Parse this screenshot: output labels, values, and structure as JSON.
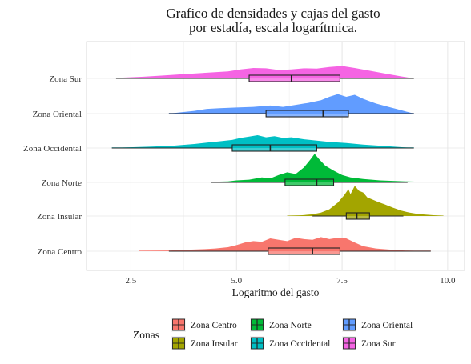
{
  "chart_data": {
    "type": "ridgeline-boxplot",
    "title_lines": [
      "Grafico de densidades y cajas del gasto",
      "por estadía, escala logarítmica."
    ],
    "xlabel": "Logaritmo del gasto",
    "ylabel": "",
    "xlim": [
      1.45,
      10.4
    ],
    "x_ticks": [
      2.5,
      5.0,
      7.5,
      10.0
    ],
    "x_tick_labels": [
      "2.5",
      "5.0",
      "7.5",
      "10.0"
    ],
    "grid": true,
    "legend_title": "Zonas",
    "legend_position": "bottom",
    "series": [
      {
        "name": "Zona Centro",
        "color": "#F8766D",
        "range": [
          2.7,
          9.6
        ],
        "box": {
          "min": 3.4,
          "q1": 5.75,
          "median": 6.8,
          "q3": 7.45,
          "max": 9.6
        },
        "density": [
          [
            2.7,
            0.01
          ],
          [
            3.4,
            0.02
          ],
          [
            3.8,
            0.04
          ],
          [
            4.2,
            0.06
          ],
          [
            4.5,
            0.08
          ],
          [
            4.8,
            0.12
          ],
          [
            5.0,
            0.18
          ],
          [
            5.2,
            0.26
          ],
          [
            5.4,
            0.3
          ],
          [
            5.6,
            0.28
          ],
          [
            5.8,
            0.38
          ],
          [
            6.0,
            0.34
          ],
          [
            6.2,
            0.3
          ],
          [
            6.4,
            0.4
          ],
          [
            6.6,
            0.36
          ],
          [
            6.8,
            0.34
          ],
          [
            7.0,
            0.42
          ],
          [
            7.2,
            0.36
          ],
          [
            7.4,
            0.4
          ],
          [
            7.6,
            0.38
          ],
          [
            7.8,
            0.26
          ],
          [
            8.0,
            0.15
          ],
          [
            8.3,
            0.08
          ],
          [
            8.6,
            0.05
          ],
          [
            9.0,
            0.02
          ],
          [
            9.6,
            0.0
          ]
        ]
      },
      {
        "name": "Zona Insular",
        "color": "#A3A500",
        "range": [
          6.2,
          9.9
        ],
        "box": {
          "min": 6.8,
          "q1": 7.6,
          "median": 7.85,
          "q3": 8.15,
          "max": 8.95
        },
        "density": [
          [
            6.2,
            0.0
          ],
          [
            6.5,
            0.02
          ],
          [
            6.8,
            0.05
          ],
          [
            7.0,
            0.1
          ],
          [
            7.2,
            0.2
          ],
          [
            7.4,
            0.4
          ],
          [
            7.55,
            0.62
          ],
          [
            7.65,
            0.8
          ],
          [
            7.7,
            0.65
          ],
          [
            7.8,
            0.9
          ],
          [
            7.9,
            0.75
          ],
          [
            8.0,
            0.7
          ],
          [
            8.1,
            0.55
          ],
          [
            8.2,
            0.5
          ],
          [
            8.35,
            0.42
          ],
          [
            8.5,
            0.35
          ],
          [
            8.7,
            0.25
          ],
          [
            8.9,
            0.16
          ],
          [
            9.1,
            0.1
          ],
          [
            9.3,
            0.06
          ],
          [
            9.6,
            0.03
          ],
          [
            9.9,
            0.0
          ]
        ]
      },
      {
        "name": "Zona Norte",
        "color": "#00BA38",
        "range": [
          2.6,
          9.95
        ],
        "box": {
          "min": 4.4,
          "q1": 6.15,
          "median": 6.9,
          "q3": 7.3,
          "max": 9.05
        },
        "density": [
          [
            2.6,
            0.0
          ],
          [
            3.5,
            0.01
          ],
          [
            4.4,
            0.02
          ],
          [
            4.8,
            0.03
          ],
          [
            5.0,
            0.06
          ],
          [
            5.3,
            0.08
          ],
          [
            5.6,
            0.15
          ],
          [
            5.8,
            0.12
          ],
          [
            6.0,
            0.22
          ],
          [
            6.2,
            0.3
          ],
          [
            6.4,
            0.25
          ],
          [
            6.6,
            0.45
          ],
          [
            6.75,
            0.68
          ],
          [
            6.85,
            0.85
          ],
          [
            6.95,
            0.7
          ],
          [
            7.1,
            0.5
          ],
          [
            7.3,
            0.35
          ],
          [
            7.5,
            0.22
          ],
          [
            7.7,
            0.15
          ],
          [
            8.0,
            0.1
          ],
          [
            8.4,
            0.06
          ],
          [
            9.0,
            0.03
          ],
          [
            9.95,
            0.0
          ]
        ]
      },
      {
        "name": "Zona Occidental",
        "color": "#00BFC4",
        "range": [
          2.05,
          9.2
        ],
        "box": {
          "min": 2.05,
          "q1": 4.9,
          "median": 5.8,
          "q3": 6.9,
          "max": 9.2
        },
        "density": [
          [
            2.05,
            0.0
          ],
          [
            2.4,
            0.02
          ],
          [
            3.0,
            0.04
          ],
          [
            3.5,
            0.07
          ],
          [
            4.0,
            0.12
          ],
          [
            4.3,
            0.16
          ],
          [
            4.6,
            0.2
          ],
          [
            4.9,
            0.24
          ],
          [
            5.1,
            0.3
          ],
          [
            5.3,
            0.34
          ],
          [
            5.5,
            0.38
          ],
          [
            5.7,
            0.32
          ],
          [
            5.9,
            0.35
          ],
          [
            6.1,
            0.3
          ],
          [
            6.3,
            0.32
          ],
          [
            6.6,
            0.26
          ],
          [
            6.9,
            0.22
          ],
          [
            7.2,
            0.18
          ],
          [
            7.6,
            0.15
          ],
          [
            8.0,
            0.1
          ],
          [
            8.5,
            0.06
          ],
          [
            9.2,
            0.0
          ]
        ]
      },
      {
        "name": "Zona Oriental",
        "color": "#619CFF",
        "range": [
          3.4,
          9.2
        ],
        "box": {
          "min": 3.4,
          "q1": 5.7,
          "median": 7.05,
          "q3": 7.65,
          "max": 9.2
        },
        "density": [
          [
            3.4,
            0.0
          ],
          [
            3.7,
            0.04
          ],
          [
            4.0,
            0.08
          ],
          [
            4.3,
            0.14
          ],
          [
            4.6,
            0.16
          ],
          [
            5.0,
            0.18
          ],
          [
            5.4,
            0.2
          ],
          [
            5.8,
            0.24
          ],
          [
            6.1,
            0.2
          ],
          [
            6.4,
            0.26
          ],
          [
            6.7,
            0.32
          ],
          [
            7.0,
            0.4
          ],
          [
            7.2,
            0.5
          ],
          [
            7.4,
            0.58
          ],
          [
            7.6,
            0.5
          ],
          [
            7.8,
            0.56
          ],
          [
            8.0,
            0.44
          ],
          [
            8.3,
            0.3
          ],
          [
            8.6,
            0.2
          ],
          [
            8.9,
            0.1
          ],
          [
            9.2,
            0.0
          ]
        ]
      },
      {
        "name": "Zona Sur",
        "color": "#F564E3",
        "range": [
          1.6,
          9.2
        ],
        "box": {
          "min": 2.15,
          "q1": 5.3,
          "median": 6.3,
          "q3": 7.45,
          "max": 9.2
        },
        "density": [
          [
            1.6,
            0.0
          ],
          [
            2.2,
            0.02
          ],
          [
            2.8,
            0.05
          ],
          [
            3.3,
            0.09
          ],
          [
            3.8,
            0.13
          ],
          [
            4.3,
            0.17
          ],
          [
            4.8,
            0.21
          ],
          [
            5.1,
            0.27
          ],
          [
            5.4,
            0.31
          ],
          [
            5.7,
            0.3
          ],
          [
            6.0,
            0.25
          ],
          [
            6.3,
            0.27
          ],
          [
            6.6,
            0.3
          ],
          [
            6.9,
            0.29
          ],
          [
            7.2,
            0.34
          ],
          [
            7.5,
            0.37
          ],
          [
            7.8,
            0.31
          ],
          [
            8.1,
            0.24
          ],
          [
            8.5,
            0.15
          ],
          [
            8.9,
            0.06
          ],
          [
            9.2,
            0.0
          ]
        ]
      }
    ]
  }
}
